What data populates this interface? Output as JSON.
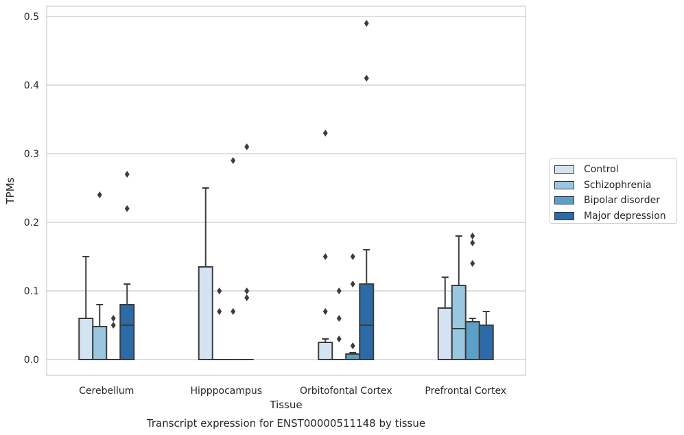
{
  "chart_data": {
    "type": "box",
    "title": "",
    "xlabel": "Tissue",
    "ylabel": "TPMs",
    "caption": "Transcript expression for ENST00000511148 by tissue",
    "ylim": [
      -0.023,
      0.515
    ],
    "yticks": [
      "0.0",
      "0.1",
      "0.2",
      "0.3",
      "0.4",
      "0.5"
    ],
    "ytick_values": [
      0,
      0.1,
      0.2,
      0.3,
      0.4,
      0.5
    ],
    "grid": true,
    "legend_position": "right",
    "categories": [
      "Cerebellum",
      "Hipppocampus",
      "Orbitofontal Cortex",
      "Prefrontal Cortex"
    ],
    "series": [
      {
        "name": "Control",
        "color": "#d3e3f2",
        "boxes": [
          {
            "q1": 0,
            "median": 0,
            "q3": 0.06,
            "whisker_low": 0,
            "whisker_high": 0.15,
            "outliers": []
          },
          {
            "q1": 0,
            "median": 0,
            "q3": 0.135,
            "whisker_low": 0,
            "whisker_high": 0.25,
            "outliers": []
          },
          {
            "q1": 0,
            "median": 0,
            "q3": 0.025,
            "whisker_low": 0,
            "whisker_high": 0.03,
            "outliers": [
              0.33,
              0.15,
              0.07
            ]
          },
          {
            "q1": 0,
            "median": 0,
            "q3": 0.075,
            "whisker_low": 0,
            "whisker_high": 0.12,
            "outliers": []
          }
        ]
      },
      {
        "name": "Schizophrenia",
        "color": "#9ac7e0",
        "boxes": [
          {
            "q1": 0,
            "median": 0,
            "q3": 0.048,
            "whisker_low": 0,
            "whisker_high": 0.08,
            "outliers": [
              0.24
            ]
          },
          {
            "q1": 0,
            "median": 0,
            "q3": 0,
            "whisker_low": 0,
            "whisker_high": 0,
            "outliers": [
              0.1,
              0.07
            ]
          },
          {
            "q1": 0,
            "median": 0,
            "q3": 0,
            "whisker_low": 0,
            "whisker_high": 0,
            "outliers": [
              0.1,
              0.06,
              0.03
            ]
          },
          {
            "q1": 0,
            "median": 0.045,
            "q3": 0.108,
            "whisker_low": 0,
            "whisker_high": 0.18,
            "outliers": []
          }
        ]
      },
      {
        "name": "Bipolar disorder",
        "color": "#5c9fc9",
        "boxes": [
          {
            "q1": 0,
            "median": 0,
            "q3": 0,
            "whisker_low": 0,
            "whisker_high": 0,
            "outliers": [
              0.06,
              0.05
            ]
          },
          {
            "q1": 0,
            "median": 0,
            "q3": 0,
            "whisker_low": 0,
            "whisker_high": 0,
            "outliers": [
              0.29,
              0.07
            ]
          },
          {
            "q1": 0,
            "median": 0.008,
            "q3": 0.008,
            "whisker_low": 0,
            "whisker_high": 0.01,
            "outliers": [
              0.15,
              0.11,
              0.02
            ]
          },
          {
            "q1": 0,
            "median": 0.055,
            "q3": 0.055,
            "whisker_low": 0,
            "whisker_high": 0.06,
            "outliers": [
              0.18,
              0.17,
              0.14
            ]
          }
        ]
      },
      {
        "name": "Major depression",
        "color": "#2c6ba8",
        "boxes": [
          {
            "q1": 0,
            "median": 0.05,
            "q3": 0.08,
            "whisker_low": 0,
            "whisker_high": 0.11,
            "outliers": [
              0.27,
              0.22
            ]
          },
          {
            "q1": 0,
            "median": 0,
            "q3": 0,
            "whisker_low": 0,
            "whisker_high": 0,
            "outliers": [
              0.31,
              0.1,
              0.09
            ]
          },
          {
            "q1": 0,
            "median": 0.05,
            "q3": 0.11,
            "whisker_low": 0,
            "whisker_high": 0.16,
            "outliers": [
              0.49,
              0.41
            ]
          },
          {
            "q1": 0,
            "median": 0.05,
            "q3": 0.05,
            "whisker_low": 0,
            "whisker_high": 0.07,
            "outliers": []
          }
        ]
      }
    ]
  }
}
